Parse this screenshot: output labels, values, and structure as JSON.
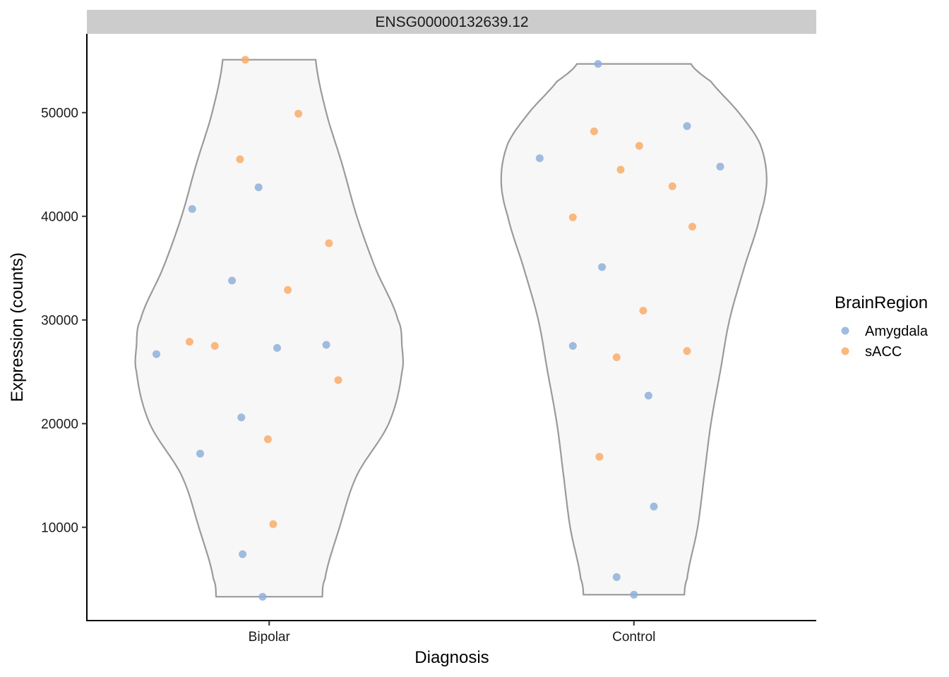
{
  "chart_data": {
    "type": "violin",
    "facet_title": "ENSG00000132639.12",
    "xlabel": "Diagnosis",
    "ylabel": "Expression (counts)",
    "categories": [
      "Bipolar",
      "Control"
    ],
    "y_ticks": [
      10000,
      20000,
      30000,
      40000,
      50000
    ],
    "y_tick_labels": [
      "10000",
      "20000",
      "30000",
      "40000",
      "50000"
    ],
    "ylim": [
      1000,
      57600
    ],
    "legend": {
      "title": "BrainRegion",
      "position": "right",
      "entries": [
        {
          "name": "Amygdala",
          "color": "#8fb0d9"
        },
        {
          "name": "sACC",
          "color": "#f9ad6a"
        }
      ]
    },
    "violin_fill": "#f7f7f7",
    "violin_stroke": "#9a9a9a",
    "violins": [
      {
        "category": "Bipolar",
        "y_min": 3300,
        "y_max": 55100,
        "profile": [
          [
            3300,
            0.4
          ],
          [
            5000,
            0.42
          ],
          [
            10000,
            0.53
          ],
          [
            15000,
            0.66
          ],
          [
            20000,
            0.9
          ],
          [
            25000,
            1.0
          ],
          [
            27500,
            1.0
          ],
          [
            30000,
            0.97
          ],
          [
            35000,
            0.8
          ],
          [
            40000,
            0.66
          ],
          [
            45000,
            0.55
          ],
          [
            50000,
            0.43
          ],
          [
            55100,
            0.35
          ]
        ]
      },
      {
        "category": "Control",
        "y_min": 3500,
        "y_max": 54700,
        "profile": [
          [
            3500,
            0.38
          ],
          [
            5000,
            0.4
          ],
          [
            10000,
            0.48
          ],
          [
            15000,
            0.53
          ],
          [
            20000,
            0.58
          ],
          [
            25000,
            0.65
          ],
          [
            30000,
            0.72
          ],
          [
            35000,
            0.83
          ],
          [
            40000,
            0.95
          ],
          [
            43500,
            1.0
          ],
          [
            47000,
            0.95
          ],
          [
            50000,
            0.79
          ],
          [
            53000,
            0.58
          ],
          [
            54700,
            0.43
          ]
        ]
      }
    ],
    "points": [
      {
        "category": "Bipolar",
        "region": "sACC",
        "y": 55100,
        "jitter": -0.18
      },
      {
        "category": "Bipolar",
        "region": "sACC",
        "y": 49900,
        "jitter": 0.22
      },
      {
        "category": "Bipolar",
        "region": "sACC",
        "y": 45500,
        "jitter": -0.22
      },
      {
        "category": "Bipolar",
        "region": "Amygdala",
        "y": 42800,
        "jitter": -0.08
      },
      {
        "category": "Bipolar",
        "region": "Amygdala",
        "y": 40700,
        "jitter": -0.58
      },
      {
        "category": "Bipolar",
        "region": "sACC",
        "y": 37400,
        "jitter": 0.45
      },
      {
        "category": "Bipolar",
        "region": "Amygdala",
        "y": 33800,
        "jitter": -0.28
      },
      {
        "category": "Bipolar",
        "region": "sACC",
        "y": 32900,
        "jitter": 0.14
      },
      {
        "category": "Bipolar",
        "region": "sACC",
        "y": 27900,
        "jitter": -0.6
      },
      {
        "category": "Bipolar",
        "region": "Amygdala",
        "y": 26700,
        "jitter": -0.85
      },
      {
        "category": "Bipolar",
        "region": "sACC",
        "y": 27500,
        "jitter": -0.41
      },
      {
        "category": "Bipolar",
        "region": "Amygdala",
        "y": 27300,
        "jitter": 0.06
      },
      {
        "category": "Bipolar",
        "region": "Amygdala",
        "y": 27600,
        "jitter": 0.43
      },
      {
        "category": "Bipolar",
        "region": "sACC",
        "y": 24200,
        "jitter": 0.52
      },
      {
        "category": "Bipolar",
        "region": "Amygdala",
        "y": 20600,
        "jitter": -0.21
      },
      {
        "category": "Bipolar",
        "region": "sACC",
        "y": 18500,
        "jitter": -0.01
      },
      {
        "category": "Bipolar",
        "region": "Amygdala",
        "y": 17100,
        "jitter": -0.52
      },
      {
        "category": "Bipolar",
        "region": "sACC",
        "y": 10300,
        "jitter": 0.03
      },
      {
        "category": "Bipolar",
        "region": "Amygdala",
        "y": 7400,
        "jitter": -0.2
      },
      {
        "category": "Bipolar",
        "region": "Amygdala",
        "y": 3300,
        "jitter": -0.05
      },
      {
        "category": "Control",
        "region": "Amygdala",
        "y": 54700,
        "jitter": -0.27
      },
      {
        "category": "Control",
        "region": "Amygdala",
        "y": 48700,
        "jitter": 0.4
      },
      {
        "category": "Control",
        "region": "sACC",
        "y": 48200,
        "jitter": -0.3
      },
      {
        "category": "Control",
        "region": "sACC",
        "y": 46800,
        "jitter": 0.04
      },
      {
        "category": "Control",
        "region": "Amygdala",
        "y": 45600,
        "jitter": -0.71
      },
      {
        "category": "Control",
        "region": "Amygdala",
        "y": 44800,
        "jitter": 0.65
      },
      {
        "category": "Control",
        "region": "sACC",
        "y": 44500,
        "jitter": -0.1
      },
      {
        "category": "Control",
        "region": "sACC",
        "y": 42900,
        "jitter": 0.29
      },
      {
        "category": "Control",
        "region": "sACC",
        "y": 39900,
        "jitter": -0.46
      },
      {
        "category": "Control",
        "region": "sACC",
        "y": 39000,
        "jitter": 0.44
      },
      {
        "category": "Control",
        "region": "Amygdala",
        "y": 35100,
        "jitter": -0.24
      },
      {
        "category": "Control",
        "region": "sACC",
        "y": 30900,
        "jitter": 0.07
      },
      {
        "category": "Control",
        "region": "Amygdala",
        "y": 27500,
        "jitter": -0.46
      },
      {
        "category": "Control",
        "region": "sACC",
        "y": 27000,
        "jitter": 0.4
      },
      {
        "category": "Control",
        "region": "sACC",
        "y": 26400,
        "jitter": -0.13
      },
      {
        "category": "Control",
        "region": "Amygdala",
        "y": 22700,
        "jitter": 0.11
      },
      {
        "category": "Control",
        "region": "sACC",
        "y": 16800,
        "jitter": -0.26
      },
      {
        "category": "Control",
        "region": "Amygdala",
        "y": 12000,
        "jitter": 0.15
      },
      {
        "category": "Control",
        "region": "Amygdala",
        "y": 5200,
        "jitter": -0.13
      },
      {
        "category": "Control",
        "region": "Amygdala",
        "y": 3500,
        "jitter": 0.0
      }
    ]
  }
}
